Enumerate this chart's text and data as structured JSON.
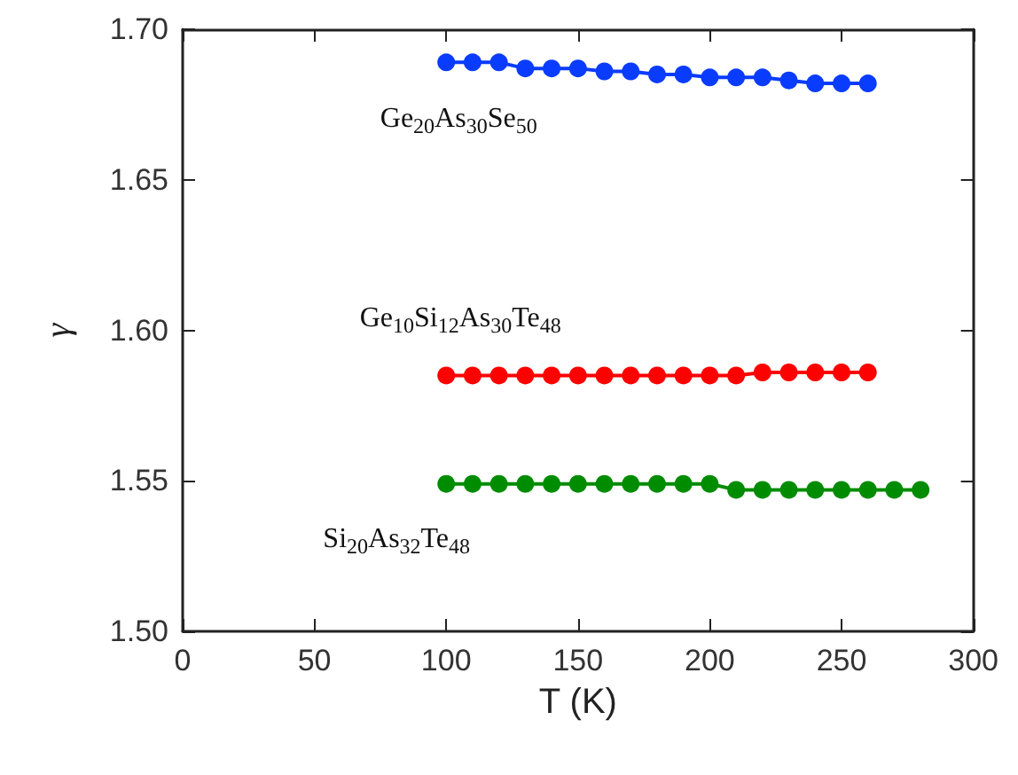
{
  "chart_data": {
    "type": "line",
    "xlabel": "T (K)",
    "ylabel": "γ",
    "xlim": [
      0,
      300
    ],
    "xticks": [
      0,
      50,
      100,
      150,
      200,
      250,
      300
    ],
    "ylim": [
      1.5,
      1.7
    ],
    "yticks": [
      {
        "value": 1.5,
        "label": "1.50"
      },
      {
        "value": 1.55,
        "label": "1.55"
      },
      {
        "value": 1.6,
        "label": "1.60"
      },
      {
        "value": 1.65,
        "label": "1.65"
      },
      {
        "value": 1.7,
        "label": "1.70"
      }
    ],
    "x": [
      100,
      110,
      120,
      130,
      140,
      150,
      160,
      170,
      180,
      190,
      200,
      210,
      220,
      230,
      240,
      250,
      260,
      270,
      280
    ],
    "series": [
      {
        "name": "Ge$_{20}$As$_{30}$Se$_{50}$",
        "color": "#0a3cff",
        "values": [
          1.689,
          1.689,
          1.689,
          1.687,
          1.687,
          1.687,
          1.686,
          1.686,
          1.685,
          1.685,
          1.684,
          1.684,
          1.684,
          1.683,
          1.682,
          1.682,
          1.682,
          null,
          null
        ]
      },
      {
        "name": "Ge$_{10}$Si$_{12}$As$_{30}$Te$_{48}$",
        "color": "#ff0000",
        "values": [
          1.585,
          1.585,
          1.585,
          1.585,
          1.585,
          1.585,
          1.585,
          1.585,
          1.585,
          1.585,
          1.585,
          1.585,
          1.586,
          1.586,
          1.586,
          1.586,
          1.586,
          null,
          null
        ]
      },
      {
        "name": "Si$_{20}$As$_{32}$Te$_{48}$",
        "color": "#008c00",
        "values": [
          1.549,
          1.549,
          1.549,
          1.549,
          1.549,
          1.549,
          1.549,
          1.549,
          1.549,
          1.549,
          1.549,
          1.547,
          1.547,
          1.547,
          1.547,
          1.547,
          1.547,
          1.547,
          1.547
        ]
      }
    ],
    "marker": "circle",
    "line_style": "solid",
    "grid": false
  }
}
